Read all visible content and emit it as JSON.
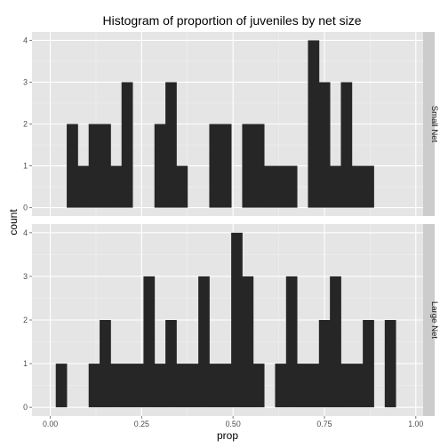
{
  "chart_data": {
    "type": "histogram",
    "title": "Histogram of proportion of juveniles by net size",
    "xlabel": "prop",
    "ylabel": "count",
    "xlim": [
      -0.05,
      1.02
    ],
    "ylim": [
      -0.2,
      4.2
    ],
    "x_ticks": [
      0.0,
      0.25,
      0.5,
      0.75,
      1.0
    ],
    "x_tick_labels": [
      "0.00",
      "0.25",
      "0.50",
      "0.75",
      "1.00"
    ],
    "y_ticks": [
      0,
      1,
      2,
      3,
      4
    ],
    "y_tick_labels": [
      "0",
      "1",
      "2",
      "3",
      "4"
    ],
    "bin_width": 0.03,
    "grid": true,
    "bar_color": "#262626",
    "panel_color": "#e5e5e5",
    "facets": [
      {
        "label": "Small Net",
        "bins": [
          {
            "x": 0.06,
            "count": 2
          },
          {
            "x": 0.09,
            "count": 1
          },
          {
            "x": 0.12,
            "count": 2
          },
          {
            "x": 0.15,
            "count": 2
          },
          {
            "x": 0.18,
            "count": 1
          },
          {
            "x": 0.21,
            "count": 3
          },
          {
            "x": 0.3,
            "count": 2
          },
          {
            "x": 0.33,
            "count": 3
          },
          {
            "x": 0.36,
            "count": 1
          },
          {
            "x": 0.45,
            "count": 2
          },
          {
            "x": 0.48,
            "count": 2
          },
          {
            "x": 0.54,
            "count": 2
          },
          {
            "x": 0.57,
            "count": 2
          },
          {
            "x": 0.6,
            "count": 1
          },
          {
            "x": 0.63,
            "count": 1
          },
          {
            "x": 0.66,
            "count": 1
          },
          {
            "x": 0.72,
            "count": 4
          },
          {
            "x": 0.75,
            "count": 3
          },
          {
            "x": 0.78,
            "count": 1
          },
          {
            "x": 0.81,
            "count": 3
          },
          {
            "x": 0.84,
            "count": 1
          },
          {
            "x": 0.87,
            "count": 1
          }
        ]
      },
      {
        "label": "Large Net",
        "bins": [
          {
            "x": 0.03,
            "count": 1
          },
          {
            "x": 0.12,
            "count": 1
          },
          {
            "x": 0.15,
            "count": 2
          },
          {
            "x": 0.18,
            "count": 1
          },
          {
            "x": 0.21,
            "count": 1
          },
          {
            "x": 0.24,
            "count": 1
          },
          {
            "x": 0.27,
            "count": 3
          },
          {
            "x": 0.3,
            "count": 1
          },
          {
            "x": 0.33,
            "count": 2
          },
          {
            "x": 0.36,
            "count": 1
          },
          {
            "x": 0.39,
            "count": 1
          },
          {
            "x": 0.42,
            "count": 3
          },
          {
            "x": 0.45,
            "count": 1
          },
          {
            "x": 0.48,
            "count": 1
          },
          {
            "x": 0.51,
            "count": 4
          },
          {
            "x": 0.54,
            "count": 3
          },
          {
            "x": 0.57,
            "count": 1
          },
          {
            "x": 0.63,
            "count": 1
          },
          {
            "x": 0.66,
            "count": 3
          },
          {
            "x": 0.69,
            "count": 1
          },
          {
            "x": 0.72,
            "count": 1
          },
          {
            "x": 0.75,
            "count": 2
          },
          {
            "x": 0.78,
            "count": 3
          },
          {
            "x": 0.81,
            "count": 1
          },
          {
            "x": 0.84,
            "count": 1
          },
          {
            "x": 0.87,
            "count": 2
          },
          {
            "x": 0.93,
            "count": 2
          }
        ]
      }
    ]
  }
}
